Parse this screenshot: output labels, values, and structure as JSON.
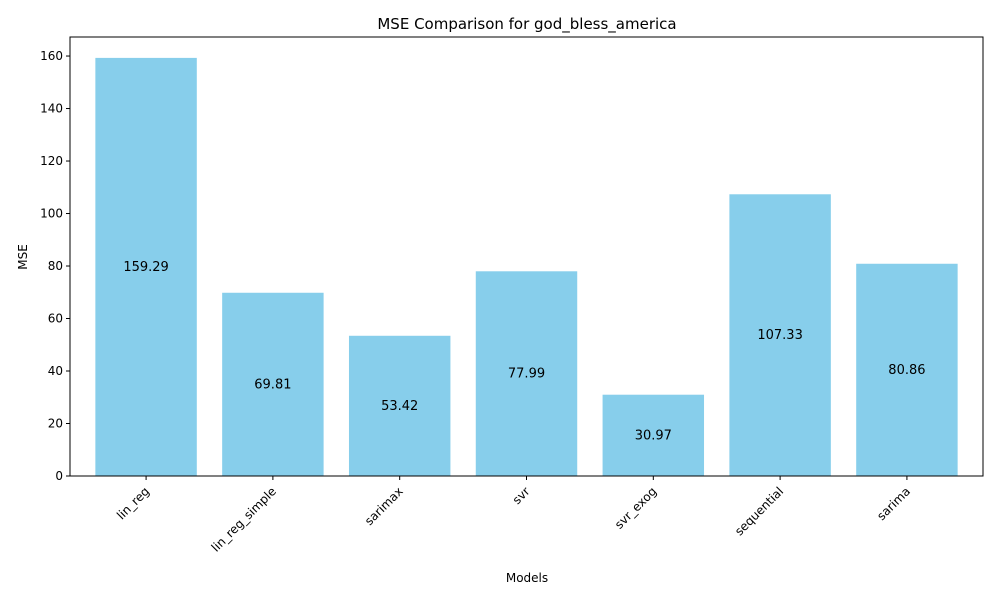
{
  "chart_data": {
    "type": "bar",
    "title": "MSE Comparison for god_bless_america",
    "xlabel": "Models",
    "ylabel": "MSE",
    "categories": [
      "lin_reg",
      "lin_reg_simple",
      "sarimax",
      "svr",
      "svr_exog",
      "sequential",
      "sarima"
    ],
    "values": [
      159.29,
      69.81,
      53.42,
      77.99,
      30.97,
      107.33,
      80.86
    ],
    "value_labels": [
      "159.29",
      "69.81",
      "53.42",
      "77.99",
      "30.97",
      "107.33",
      "80.86"
    ],
    "ylim": [
      0,
      167.25
    ],
    "yticks": [
      0,
      20,
      40,
      60,
      80,
      100,
      120,
      140,
      160
    ],
    "bar_color": "#87CEEB",
    "grid": false,
    "legend": "none",
    "xtick_rotation": 45
  }
}
